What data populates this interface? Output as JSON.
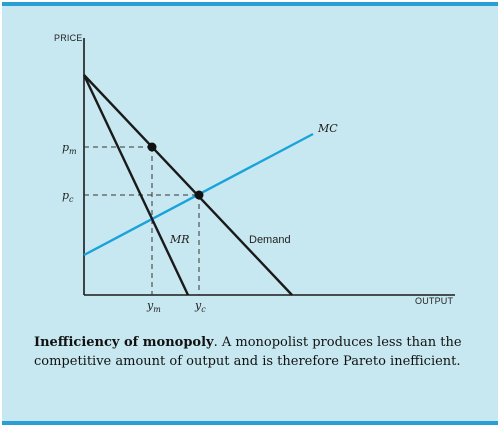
{
  "diagram": {
    "axes": {
      "y_label": "PRICE",
      "x_label": "OUTPUT"
    },
    "curves": {
      "mc_label": "MC",
      "mr_label": "MR",
      "demand_label": "Demand"
    },
    "ticks": {
      "p_m": {
        "main": "p",
        "sub": "m"
      },
      "p_c": {
        "main": "p",
        "sub": "c"
      },
      "y_m": {
        "main": "y",
        "sub": "m"
      },
      "y_c": {
        "main": "y",
        "sub": "c"
      }
    },
    "colors": {
      "background": "#c8e8f1",
      "border": "#2a9fd6",
      "mc_line": "#1aa3da",
      "curve": "#1a1a1a"
    }
  },
  "caption": {
    "title": "Inefficiency of monopoly",
    "body": ". A monopolist produces less than the competitive amount of output and is therefore Pareto inefficient."
  }
}
